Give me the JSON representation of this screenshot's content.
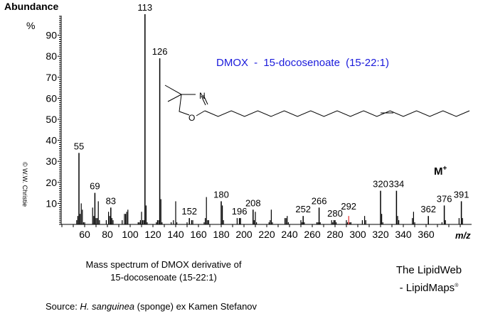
{
  "chart_data": {
    "type": "bar",
    "title": "DMOX - 15-docosenoate (15-22:1)",
    "xlabel": "m/z",
    "ylabel": "Abundance %",
    "xlim": [
      40,
      400
    ],
    "ylim": [
      0,
      100
    ],
    "x_ticks": [
      60,
      80,
      100,
      120,
      140,
      160,
      180,
      200,
      220,
      240,
      260,
      280,
      300,
      320,
      340,
      360
    ],
    "y_ticks": [
      10,
      20,
      30,
      40,
      50,
      60,
      70,
      80,
      90
    ],
    "grid": false,
    "molecular_ion_label": "M+",
    "labeled_peaks": [
      {
        "mz": 55,
        "abundance": 34,
        "label": "55"
      },
      {
        "mz": 69,
        "abundance": 15,
        "label": "69"
      },
      {
        "mz": 83,
        "abundance": 8,
        "label": "83"
      },
      {
        "mz": 113,
        "abundance": 100,
        "label": "113"
      },
      {
        "mz": 126,
        "abundance": 79,
        "label": "126"
      },
      {
        "mz": 152,
        "abundance": 3,
        "label": "152"
      },
      {
        "mz": 180,
        "abundance": 11,
        "label": "180"
      },
      {
        "mz": 196,
        "abundance": 3,
        "label": "196"
      },
      {
        "mz": 208,
        "abundance": 7,
        "label": "208"
      },
      {
        "mz": 252,
        "abundance": 4,
        "label": "252"
      },
      {
        "mz": 266,
        "abundance": 8,
        "label": "266"
      },
      {
        "mz": 280,
        "abundance": 2,
        "label": "280"
      },
      {
        "mz": 292,
        "abundance": 4,
        "label": "292",
        "color": "#e00000"
      },
      {
        "mz": 320,
        "abundance": 16,
        "label": "320"
      },
      {
        "mz": 334,
        "abundance": 16,
        "label": "334"
      },
      {
        "mz": 362,
        "abundance": 4,
        "label": "362"
      },
      {
        "mz": 376,
        "abundance": 9,
        "label": "376"
      },
      {
        "mz": 391,
        "abundance": 11,
        "label": "391"
      }
    ],
    "minor_peaks": [
      [
        53,
        2
      ],
      [
        54,
        4
      ],
      [
        56,
        5
      ],
      [
        57,
        10
      ],
      [
        58,
        7
      ],
      [
        59,
        1
      ],
      [
        60,
        1
      ],
      [
        67,
        8
      ],
      [
        68,
        4
      ],
      [
        70,
        3
      ],
      [
        71,
        3
      ],
      [
        72,
        11
      ],
      [
        73,
        2
      ],
      [
        79,
        2
      ],
      [
        81,
        6
      ],
      [
        82,
        4
      ],
      [
        84,
        3
      ],
      [
        85,
        2
      ],
      [
        93,
        2
      ],
      [
        95,
        5
      ],
      [
        96,
        5
      ],
      [
        97,
        6
      ],
      [
        98,
        7
      ],
      [
        107,
        1
      ],
      [
        108,
        1
      ],
      [
        109,
        2
      ],
      [
        110,
        6
      ],
      [
        111,
        2
      ],
      [
        112,
        2
      ],
      [
        114,
        9
      ],
      [
        115,
        1
      ],
      [
        123,
        1
      ],
      [
        124,
        2
      ],
      [
        125,
        2
      ],
      [
        127,
        12
      ],
      [
        128,
        1
      ],
      [
        136,
        1
      ],
      [
        138,
        2
      ],
      [
        140,
        11
      ],
      [
        141,
        1
      ],
      [
        150,
        1
      ],
      [
        154,
        2
      ],
      [
        155,
        2
      ],
      [
        165,
        1
      ],
      [
        166,
        3
      ],
      [
        167,
        13
      ],
      [
        168,
        2
      ],
      [
        169,
        2
      ],
      [
        181,
        9
      ],
      [
        182,
        2
      ],
      [
        194,
        3
      ],
      [
        197,
        3
      ],
      [
        209,
        2
      ],
      [
        210,
        6
      ],
      [
        211,
        1
      ],
      [
        222,
        1
      ],
      [
        223,
        2
      ],
      [
        224,
        7
      ],
      [
        225,
        1
      ],
      [
        236,
        3
      ],
      [
        237,
        3
      ],
      [
        238,
        4
      ],
      [
        239,
        1
      ],
      [
        250,
        2
      ],
      [
        251,
        1
      ],
      [
        253,
        1
      ],
      [
        264,
        1
      ],
      [
        265,
        1
      ],
      [
        267,
        1
      ],
      [
        277,
        2
      ],
      [
        278,
        1
      ],
      [
        279,
        2
      ],
      [
        281,
        1
      ],
      [
        290,
        2
      ],
      [
        291,
        1
      ],
      [
        293,
        1
      ],
      [
        294,
        1
      ],
      [
        304,
        2
      ],
      [
        306,
        4
      ],
      [
        307,
        2
      ],
      [
        321,
        5
      ],
      [
        322,
        1
      ],
      [
        335,
        4
      ],
      [
        336,
        2
      ],
      [
        348,
        3
      ],
      [
        349,
        6
      ],
      [
        350,
        1
      ],
      [
        374,
        1
      ],
      [
        377,
        2
      ],
      [
        389,
        3
      ],
      [
        392,
        3
      ]
    ]
  },
  "axis": {
    "y_title": "Abundance",
    "y_unit": "%",
    "x_unit": "m/z"
  },
  "annotations": {
    "compound_title": "DMOX  -  15-docosenoate  (15-22:1)",
    "molecular_ion": "M",
    "molecular_ion_sup": "+",
    "structure_atoms": {
      "n": "N",
      "o": "O"
    },
    "copyright": "© W.W. Christie"
  },
  "footer": {
    "caption_line1": "Mass spectrum of DMOX derivative of",
    "caption_line2": "15-docosenoate (15-22:1)",
    "source_prefix": "Source: ",
    "source_species": "H. sanguinea",
    "source_suffix": " (sponge) ex Kamen Stefanov",
    "brand_line1": "The LipidWeb",
    "brand_line2": "- LipidMaps",
    "brand_mark": "®"
  },
  "colors": {
    "title": "#1a1adb",
    "peaks": "#000000",
    "highlight_peak": "#e00000"
  }
}
